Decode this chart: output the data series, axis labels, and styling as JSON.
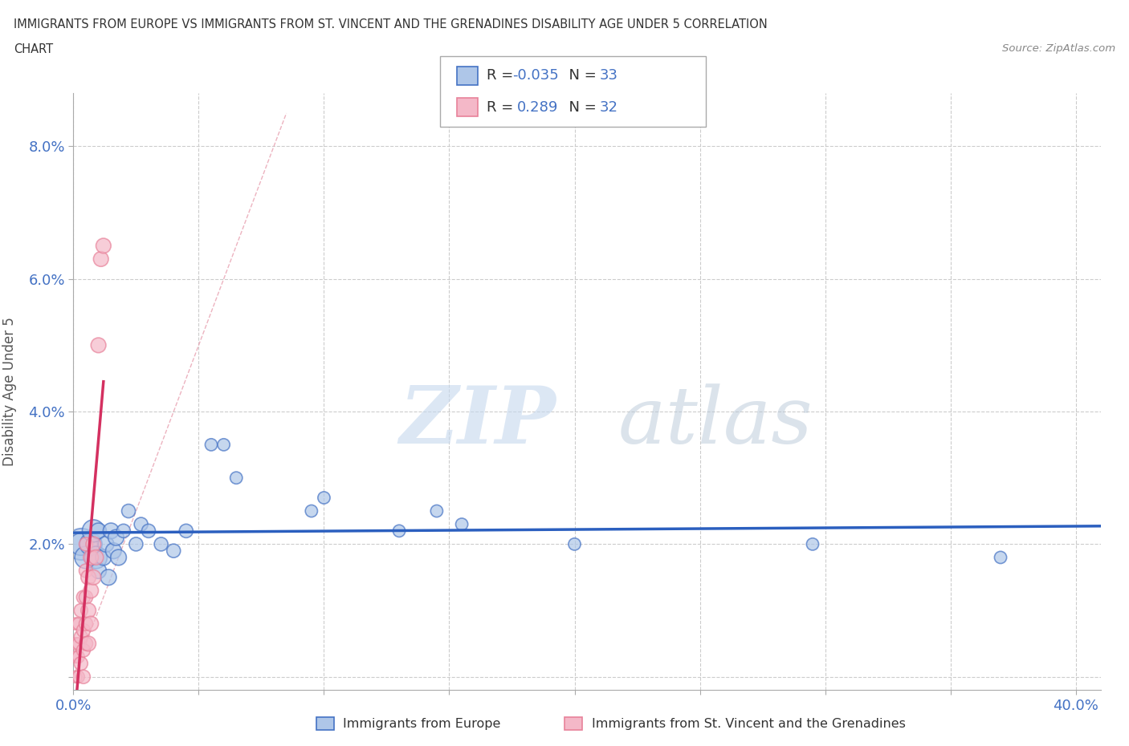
{
  "title_line1": "IMMIGRANTS FROM EUROPE VS IMMIGRANTS FROM ST. VINCENT AND THE GRENADINES DISABILITY AGE UNDER 5 CORRELATION",
  "title_line2": "CHART",
  "source": "Source: ZipAtlas.com",
  "ylabel": "Disability Age Under 5",
  "xlim": [
    0.0,
    0.41
  ],
  "ylim": [
    -0.002,
    0.088
  ],
  "xticks": [
    0.0,
    0.05,
    0.1,
    0.15,
    0.2,
    0.25,
    0.3,
    0.35,
    0.4
  ],
  "yticks": [
    0.0,
    0.02,
    0.04,
    0.06,
    0.08
  ],
  "color_europe": "#AEC6E8",
  "color_europe_edge": "#4472C4",
  "color_stvincent": "#F4B8C8",
  "color_stvincent_edge": "#E8829A",
  "color_europe_line": "#2B5FBF",
  "color_stvincent_line": "#D43060",
  "color_diag": "#E8A0B0",
  "R_europe": -0.035,
  "N_europe": 33,
  "R_stvincent": 0.289,
  "N_stvincent": 32,
  "europe_x": [
    0.003,
    0.005,
    0.007,
    0.008,
    0.009,
    0.01,
    0.01,
    0.012,
    0.013,
    0.014,
    0.015,
    0.016,
    0.017,
    0.018,
    0.02,
    0.022,
    0.025,
    0.027,
    0.03,
    0.035,
    0.04,
    0.045,
    0.055,
    0.06,
    0.065,
    0.095,
    0.1,
    0.13,
    0.145,
    0.155,
    0.2,
    0.295,
    0.37
  ],
  "europe_y": [
    0.02,
    0.018,
    0.02,
    0.022,
    0.018,
    0.016,
    0.022,
    0.018,
    0.02,
    0.015,
    0.022,
    0.019,
    0.021,
    0.018,
    0.022,
    0.025,
    0.02,
    0.023,
    0.022,
    0.02,
    0.019,
    0.022,
    0.035,
    0.035,
    0.03,
    0.025,
    0.027,
    0.022,
    0.025,
    0.023,
    0.02,
    0.02,
    0.018
  ],
  "stvincent_x": [
    0.001,
    0.001,
    0.001,
    0.001,
    0.002,
    0.002,
    0.002,
    0.002,
    0.003,
    0.003,
    0.003,
    0.004,
    0.004,
    0.004,
    0.004,
    0.005,
    0.005,
    0.005,
    0.005,
    0.005,
    0.006,
    0.006,
    0.006,
    0.007,
    0.007,
    0.007,
    0.008,
    0.008,
    0.009,
    0.01,
    0.011,
    0.012
  ],
  "stvincent_y": [
    0.0,
    0.003,
    0.005,
    0.008,
    0.0,
    0.003,
    0.005,
    0.008,
    0.002,
    0.006,
    0.01,
    0.0,
    0.004,
    0.007,
    0.012,
    0.005,
    0.008,
    0.012,
    0.016,
    0.02,
    0.005,
    0.01,
    0.015,
    0.008,
    0.013,
    0.018,
    0.015,
    0.02,
    0.018,
    0.05,
    0.063,
    0.065
  ],
  "watermark_zip": "ZIP",
  "watermark_atlas": "atlas",
  "legend_europe_label": "Immigrants from Europe",
  "legend_stvincent_label": "Immigrants from St. Vincent and the Grenadines"
}
